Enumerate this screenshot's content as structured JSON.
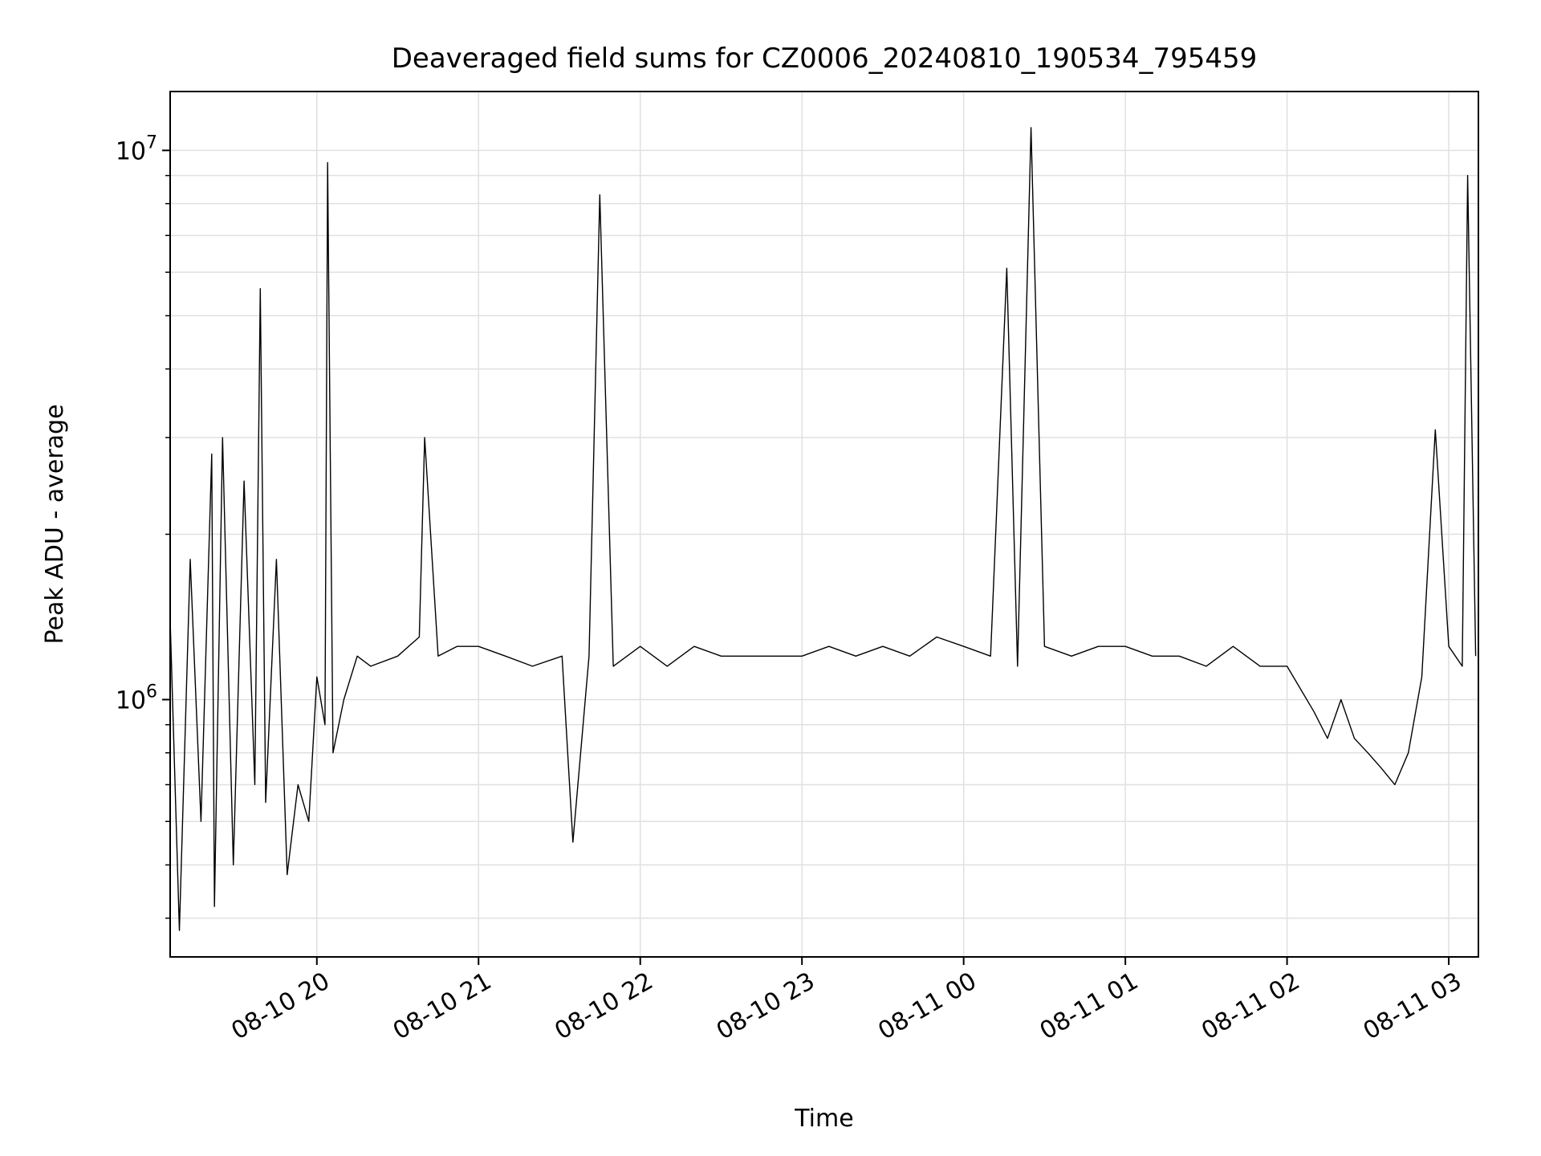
{
  "chart_data": {
    "type": "line",
    "title": "Deaveraged field sums for CZ0006_20240810_190534_795459",
    "xlabel": "Time",
    "ylabel": "Peak ADU - average",
    "yscale": "log",
    "ylim": [
      340000,
      12800000
    ],
    "xlim": [
      "2024-08-10 19:05:34",
      "2024-08-11 03:11:00"
    ],
    "grid": true,
    "line_color": "#000000",
    "grid_color": "#e0e0e0",
    "x_ticks": [
      {
        "value": "2024-08-10 20:00",
        "label": "08-10 20"
      },
      {
        "value": "2024-08-10 21:00",
        "label": "08-10 21"
      },
      {
        "value": "2024-08-10 22:00",
        "label": "08-10 22"
      },
      {
        "value": "2024-08-10 23:00",
        "label": "08-10 23"
      },
      {
        "value": "2024-08-11 00:00",
        "label": "08-11 00"
      },
      {
        "value": "2024-08-11 01:00",
        "label": "08-11 01"
      },
      {
        "value": "2024-08-11 02:00",
        "label": "08-11 02"
      },
      {
        "value": "2024-08-11 03:00",
        "label": "08-11 03"
      }
    ],
    "y_ticks": [
      {
        "value": 1000000,
        "label": "10",
        "exponent": "6"
      },
      {
        "value": 10000000,
        "label": "10",
        "exponent": "7"
      }
    ],
    "series": [
      {
        "x": [
          "2024-08-10 19:05:34",
          "2024-08-10 19:09",
          "2024-08-10 19:13",
          "2024-08-10 19:17",
          "2024-08-10 19:21",
          "2024-08-10 19:22",
          "2024-08-10 19:25",
          "2024-08-10 19:29",
          "2024-08-10 19:33",
          "2024-08-10 19:37",
          "2024-08-10 19:39",
          "2024-08-10 19:41",
          "2024-08-10 19:45",
          "2024-08-10 19:49",
          "2024-08-10 19:53",
          "2024-08-10 19:57",
          "2024-08-10 20:00",
          "2024-08-10 20:03",
          "2024-08-10 20:04",
          "2024-08-10 20:06",
          "2024-08-10 20:10",
          "2024-08-10 20:15",
          "2024-08-10 20:20",
          "2024-08-10 20:30",
          "2024-08-10 20:38",
          "2024-08-10 20:40",
          "2024-08-10 20:45",
          "2024-08-10 20:52",
          "2024-08-10 21:00",
          "2024-08-10 21:10",
          "2024-08-10 21:20",
          "2024-08-10 21:31",
          "2024-08-10 21:35",
          "2024-08-10 21:41",
          "2024-08-10 21:45",
          "2024-08-10 21:50",
          "2024-08-10 22:00",
          "2024-08-10 22:10",
          "2024-08-10 22:20",
          "2024-08-10 22:30",
          "2024-08-10 22:40",
          "2024-08-10 22:50",
          "2024-08-10 23:00",
          "2024-08-10 23:10",
          "2024-08-10 23:20",
          "2024-08-10 23:30",
          "2024-08-10 23:40",
          "2024-08-10 23:50",
          "2024-08-11 00:00",
          "2024-08-11 00:10",
          "2024-08-11 00:16",
          "2024-08-11 00:20",
          "2024-08-11 00:25",
          "2024-08-11 00:30",
          "2024-08-11 00:40",
          "2024-08-11 00:50",
          "2024-08-11 01:00",
          "2024-08-11 01:10",
          "2024-08-11 01:20",
          "2024-08-11 01:30",
          "2024-08-11 01:40",
          "2024-08-11 01:50",
          "2024-08-11 02:00",
          "2024-08-11 02:10",
          "2024-08-11 02:15",
          "2024-08-11 02:20",
          "2024-08-11 02:25",
          "2024-08-11 02:30",
          "2024-08-11 02:35",
          "2024-08-11 02:40",
          "2024-08-11 02:45",
          "2024-08-11 02:50",
          "2024-08-11 02:55",
          "2024-08-11 03:00",
          "2024-08-11 03:05",
          "2024-08-11 03:07",
          "2024-08-11 03:10"
        ],
        "y": [
          1400000,
          380000,
          1800000,
          600000,
          2800000,
          420000,
          3000000,
          500000,
          2500000,
          700000,
          5600000,
          650000,
          1800000,
          480000,
          700000,
          600000,
          1100000,
          900000,
          9500000,
          800000,
          1000000,
          1200000,
          1150000,
          1200000,
          1300000,
          3000000,
          1200000,
          1250000,
          1250000,
          1200000,
          1150000,
          1200000,
          550000,
          1200000,
          8300000,
          1150000,
          1250000,
          1150000,
          1250000,
          1200000,
          1200000,
          1200000,
          1200000,
          1250000,
          1200000,
          1250000,
          1200000,
          1300000,
          1250000,
          1200000,
          6100000,
          1150000,
          11000000,
          1250000,
          1200000,
          1250000,
          1250000,
          1200000,
          1200000,
          1150000,
          1250000,
          1150000,
          1150000,
          950000,
          850000,
          1000000,
          850000,
          800000,
          750000,
          700000,
          800000,
          1100000,
          3100000,
          1250000,
          1150000,
          9000000,
          1200000
        ]
      }
    ]
  }
}
